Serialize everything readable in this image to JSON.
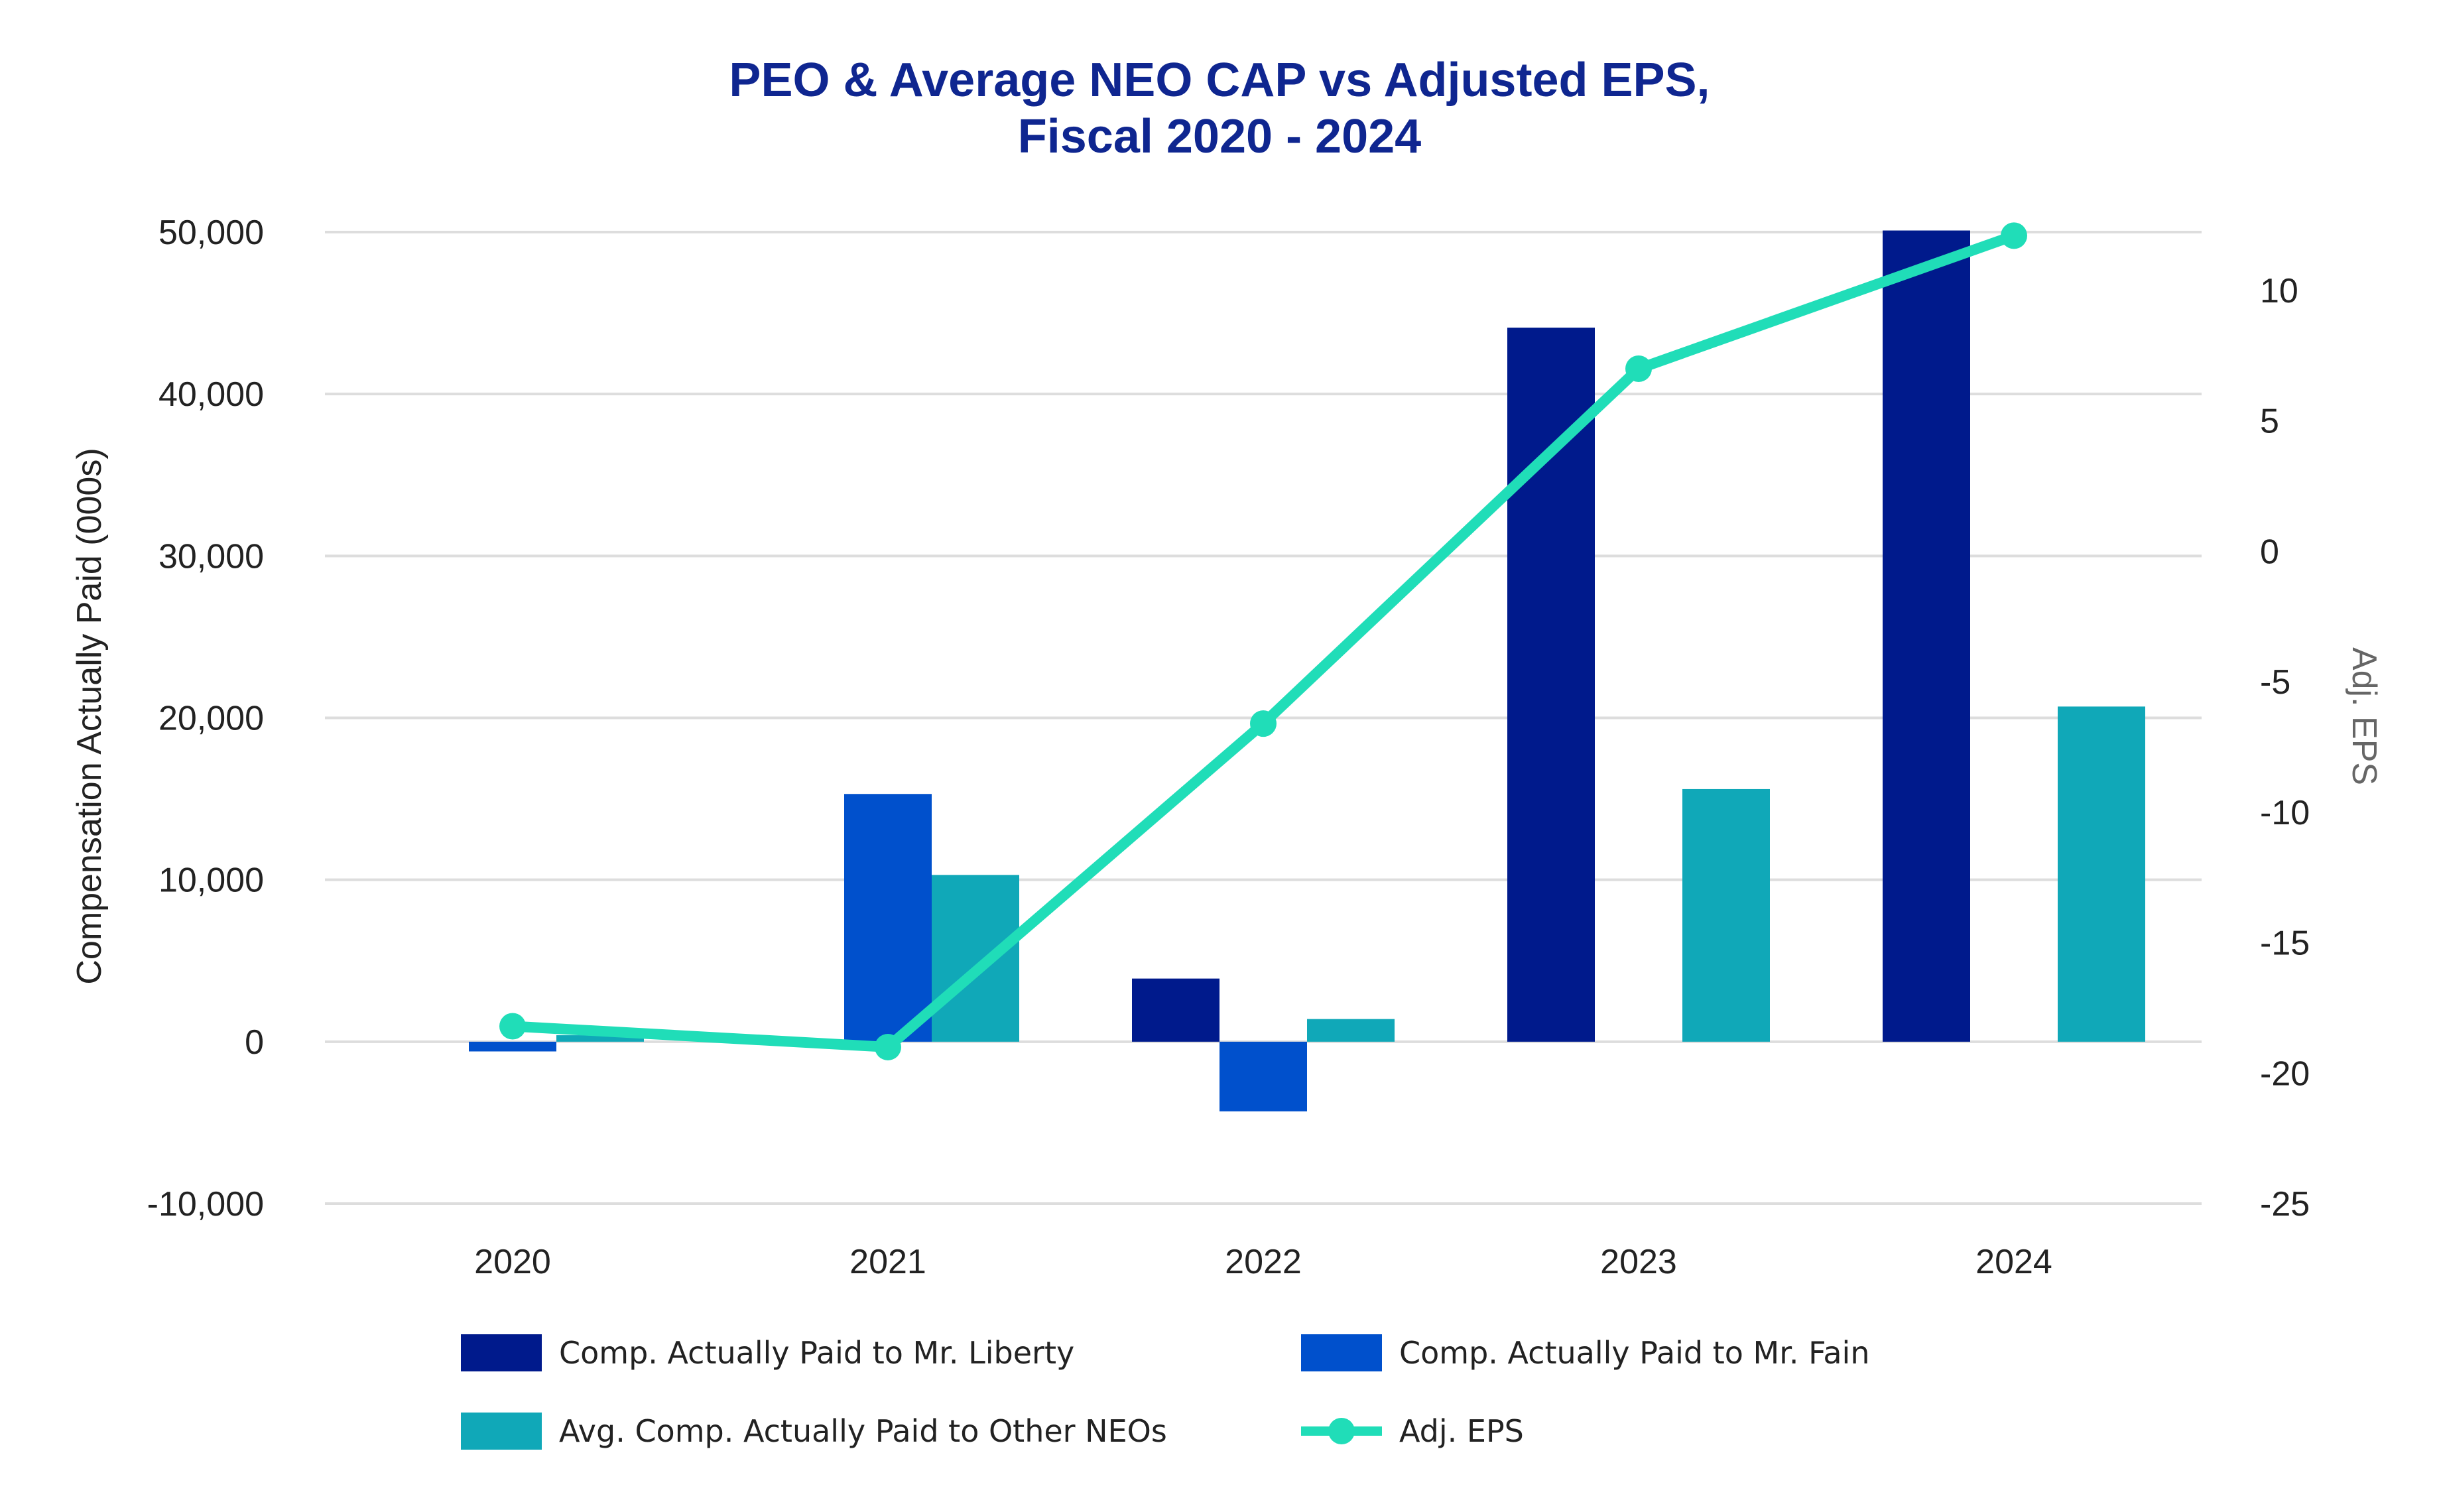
{
  "chart_data": {
    "type": "bar",
    "title_lines": [
      "PEO & Average NEO CAP vs Adjusted EPS,",
      "Fiscal 2020 - 2024"
    ],
    "categories": [
      "2020",
      "2021",
      "2022",
      "2023",
      "2024"
    ],
    "ylabel": "Compensation Actually Paid (000s)",
    "ylabel_right": "Adj. EPS",
    "ylim": [
      -10000,
      50000
    ],
    "y_ticks": [
      50000,
      40000,
      30000,
      20000,
      10000,
      0,
      -10000
    ],
    "y_tick_labels": [
      "50,000",
      "40,000",
      "30,000",
      "20,000",
      "10,000",
      "0",
      "-10,000"
    ],
    "y2lim": [
      -25,
      12
    ],
    "y2_ticks": [
      10,
      5,
      0,
      -5,
      -10,
      -15,
      -20,
      -25
    ],
    "y2_tick_labels": [
      "10",
      "5",
      "0",
      "-5",
      "-10",
      "-15",
      "-20",
      "-25"
    ],
    "series": [
      {
        "name": "Comp. Actually Paid to Mr. Liberty",
        "color": "#001A8C",
        "values": [
          null,
          null,
          3900,
          44100,
          50100
        ]
      },
      {
        "name": "Comp. Actually Paid to Mr. Fain",
        "color": "#0050CC",
        "values": [
          -600,
          15300,
          -4300,
          null,
          null
        ]
      },
      {
        "name": "Avg. Comp. Actually Paid to Other NEOs",
        "color": "#10A8B8",
        "values": [
          400,
          10300,
          1400,
          15600,
          20700
        ]
      }
    ],
    "line_series": {
      "name": "Adj. EPS",
      "color": "#20DDB8",
      "axis": "right",
      "values": [
        -18.2,
        -19.0,
        -6.6,
        7.0,
        12.1
      ]
    },
    "legend_position": "bottom"
  }
}
